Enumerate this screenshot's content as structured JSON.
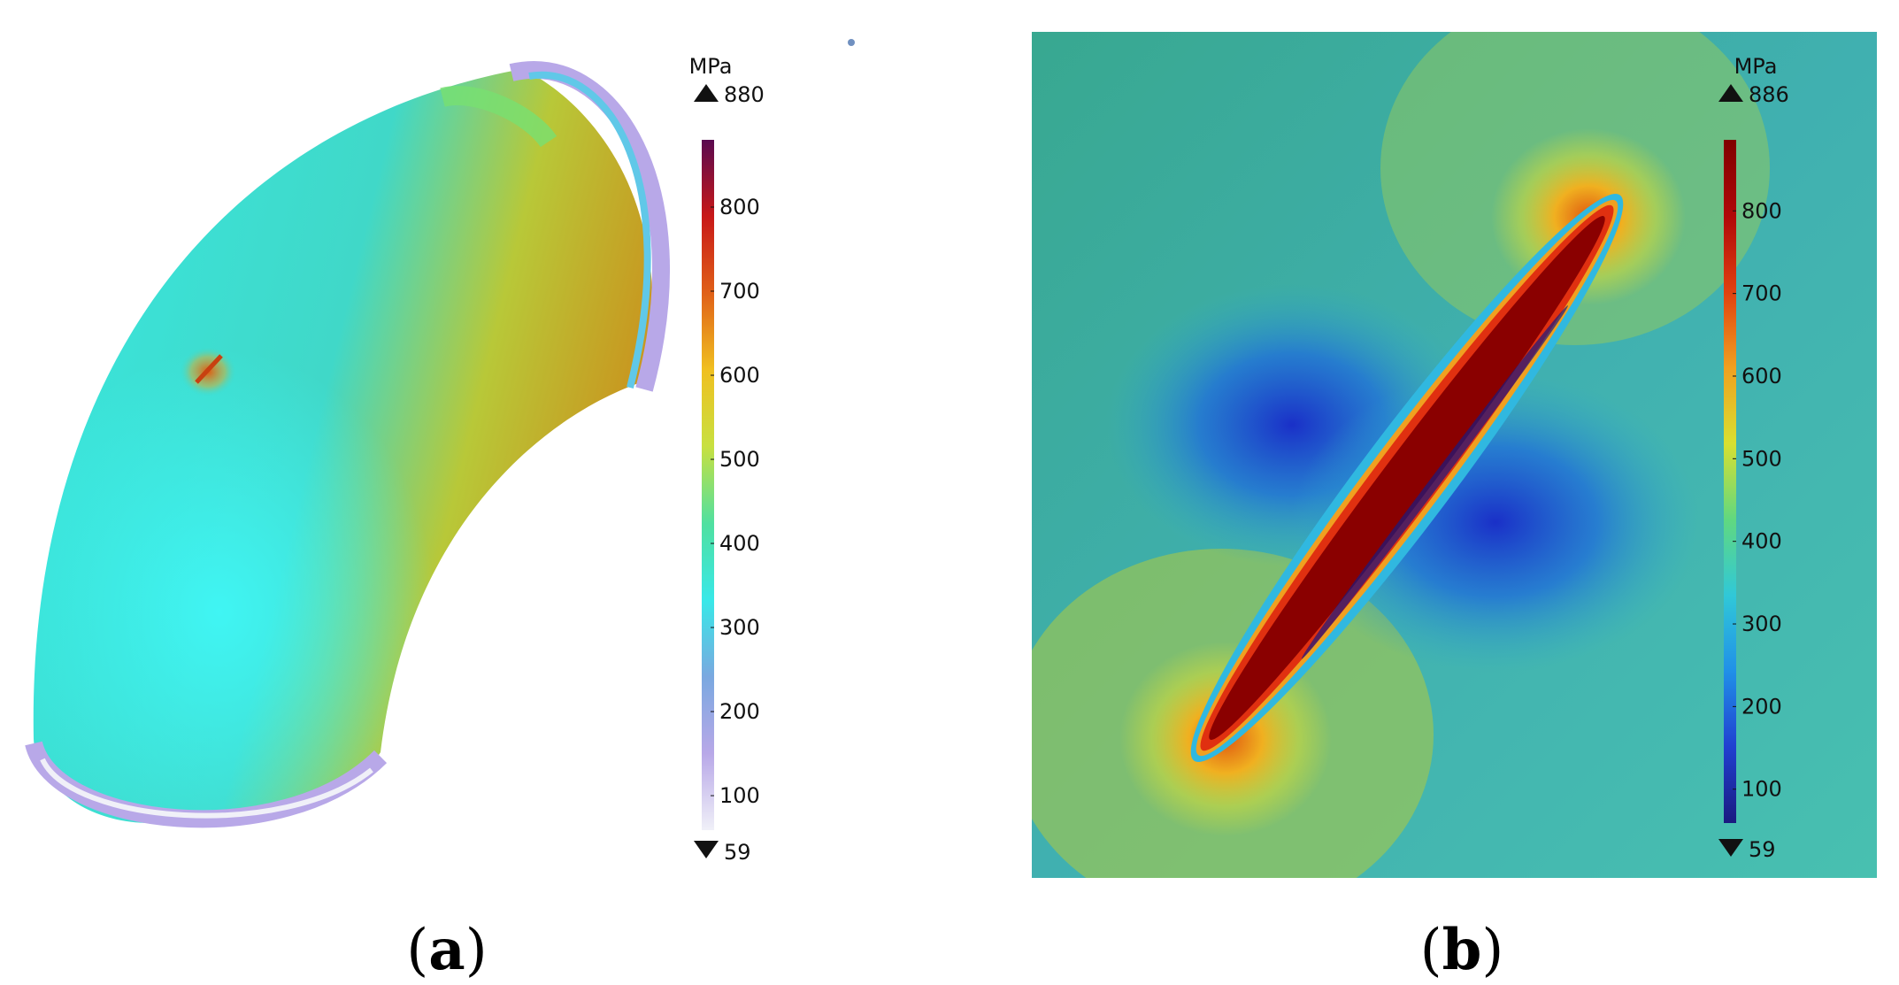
{
  "panels": [
    {
      "id": "a",
      "caption": "(a)",
      "caption_letter": "a",
      "colorbar": {
        "unit": "MPa",
        "max_label": "880",
        "min_label": "59",
        "max": 880,
        "min": 59,
        "ticks": [
          {
            "value": 800,
            "label": "800"
          },
          {
            "value": 700,
            "label": "700"
          },
          {
            "value": 600,
            "label": "600"
          },
          {
            "value": 500,
            "label": "500"
          },
          {
            "value": 400,
            "label": "400"
          },
          {
            "value": 300,
            "label": "300"
          },
          {
            "value": 200,
            "label": "200"
          },
          {
            "value": 100,
            "label": "100"
          }
        ],
        "colors": [
          "#f0f0f8",
          "#b8a8e8",
          "#7aa8e0",
          "#38e8e8",
          "#50e0a0",
          "#c8e040",
          "#f0c020",
          "#e06018",
          "#c81818",
          "#5a0a50"
        ]
      }
    },
    {
      "id": "b",
      "caption": "(b)",
      "caption_letter": "b",
      "colorbar": {
        "unit": "MPa",
        "max_label": "886",
        "min_label": "59",
        "max": 886,
        "min": 59,
        "ticks": [
          {
            "value": 800,
            "label": "800"
          },
          {
            "value": 700,
            "label": "700"
          },
          {
            "value": 600,
            "label": "600"
          },
          {
            "value": 500,
            "label": "500"
          },
          {
            "value": 400,
            "label": "400"
          },
          {
            "value": 300,
            "label": "300"
          },
          {
            "value": 200,
            "label": "200"
          },
          {
            "value": 100,
            "label": "100"
          }
        ],
        "colors": [
          "#1a1a80",
          "#2040d0",
          "#2090e8",
          "#30c8d8",
          "#60d880",
          "#d8e030",
          "#f0a020",
          "#e04010",
          "#b00808",
          "#800000"
        ]
      }
    }
  ]
}
